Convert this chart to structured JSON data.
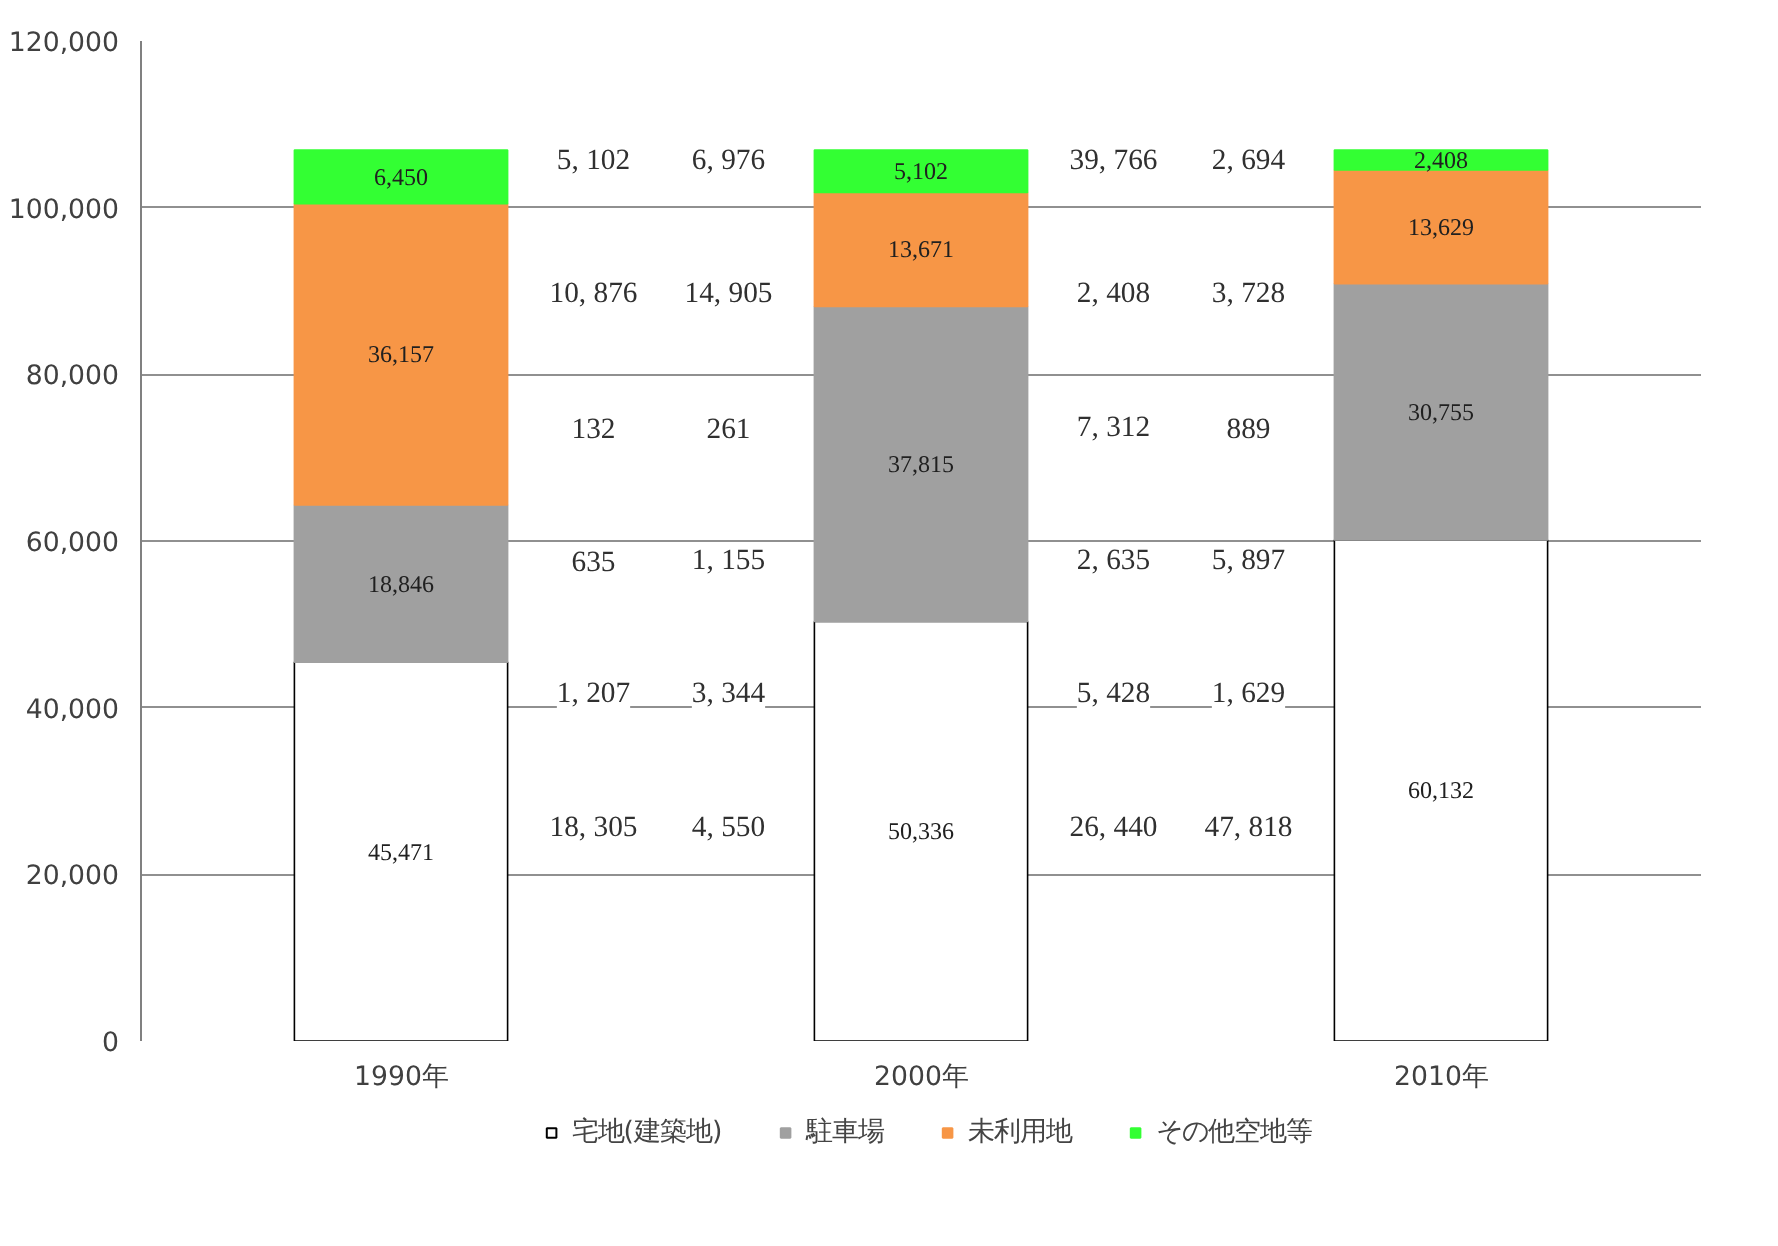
{
  "chart_data": {
    "type": "bar",
    "stacked": true,
    "x": [
      1990,
      2000,
      2010
    ],
    "xlim": [
      1985,
      2015
    ],
    "xticks": [
      {
        "value": 1990,
        "label": "1990年"
      },
      {
        "value": 2000,
        "label": "2000年"
      },
      {
        "value": 2010,
        "label": "2010年"
      }
    ],
    "ylim": [
      0,
      120000
    ],
    "yticks": [
      {
        "value": 0,
        "label": "0"
      },
      {
        "value": 20000,
        "label": "20,000"
      },
      {
        "value": 40000,
        "label": "40,000"
      },
      {
        "value": 60000,
        "label": "60,000"
      },
      {
        "value": 80000,
        "label": "80,000"
      },
      {
        "value": 100000,
        "label": "100,000"
      },
      {
        "value": 120000,
        "label": "120,000"
      }
    ],
    "grid": "y",
    "legend": "bottom",
    "series": [
      {
        "name": "宅地(建築地)",
        "color": "#ffffff",
        "values": [
          45471,
          50336,
          60132
        ],
        "value_labels": [
          "45,471",
          "50,336",
          "60,132"
        ]
      },
      {
        "name": "駐車場",
        "color": "#a0a0a0",
        "values": [
          18846,
          37815,
          30755
        ],
        "value_labels": [
          "18,846",
          "37,815",
          "30,755"
        ]
      },
      {
        "name": "未利用地",
        "color": "#f79646",
        "values": [
          36157,
          13671,
          13629
        ],
        "value_labels": [
          "36,157",
          "13,671",
          "13,629"
        ]
      },
      {
        "name": "その他空地等",
        "color": "#33ff33",
        "values": [
          6450,
          5102,
          2408
        ],
        "value_labels": [
          "6,450",
          "5,102",
          "2,408"
        ]
      }
    ],
    "annotations": [
      "5, 102",
      "10, 876",
      "132",
      "635",
      "1, 207",
      "18, 305",
      "6, 976",
      "14, 905",
      "261",
      "1, 155",
      "3, 344",
      "4, 550",
      "39, 766",
      "2, 408",
      "7, 312",
      "2, 635",
      "5, 428",
      "26, 440",
      "2, 694",
      "3, 728",
      "889",
      "5, 897",
      "1, 629",
      "47, 818"
    ]
  }
}
